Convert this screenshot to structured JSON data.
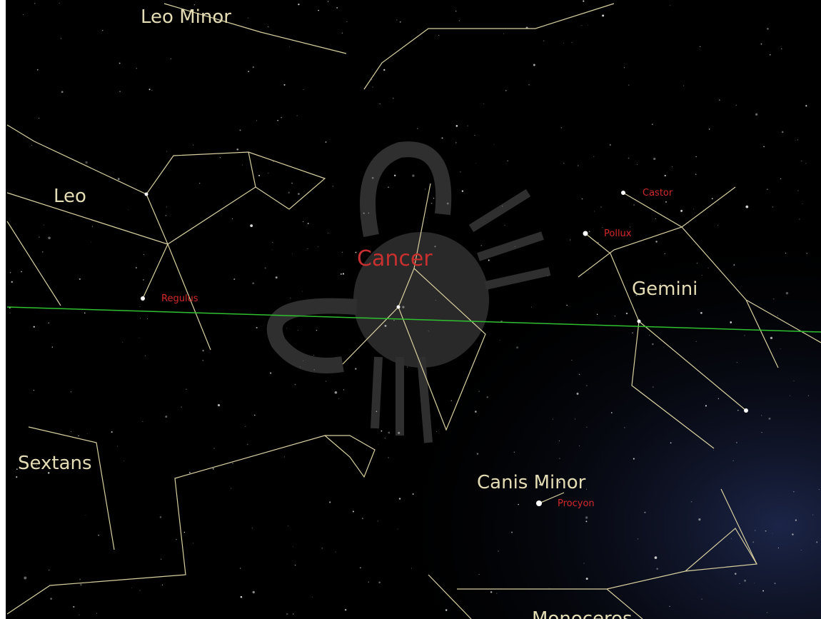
{
  "constellations": [
    "Leo Minor",
    "Leo",
    "Cancer",
    "Gemini",
    "Sextans",
    "Canis Minor",
    "Monoceros"
  ],
  "stars": [
    "Regulus",
    "Castor",
    "Pollux",
    "Procyon"
  ]
}
